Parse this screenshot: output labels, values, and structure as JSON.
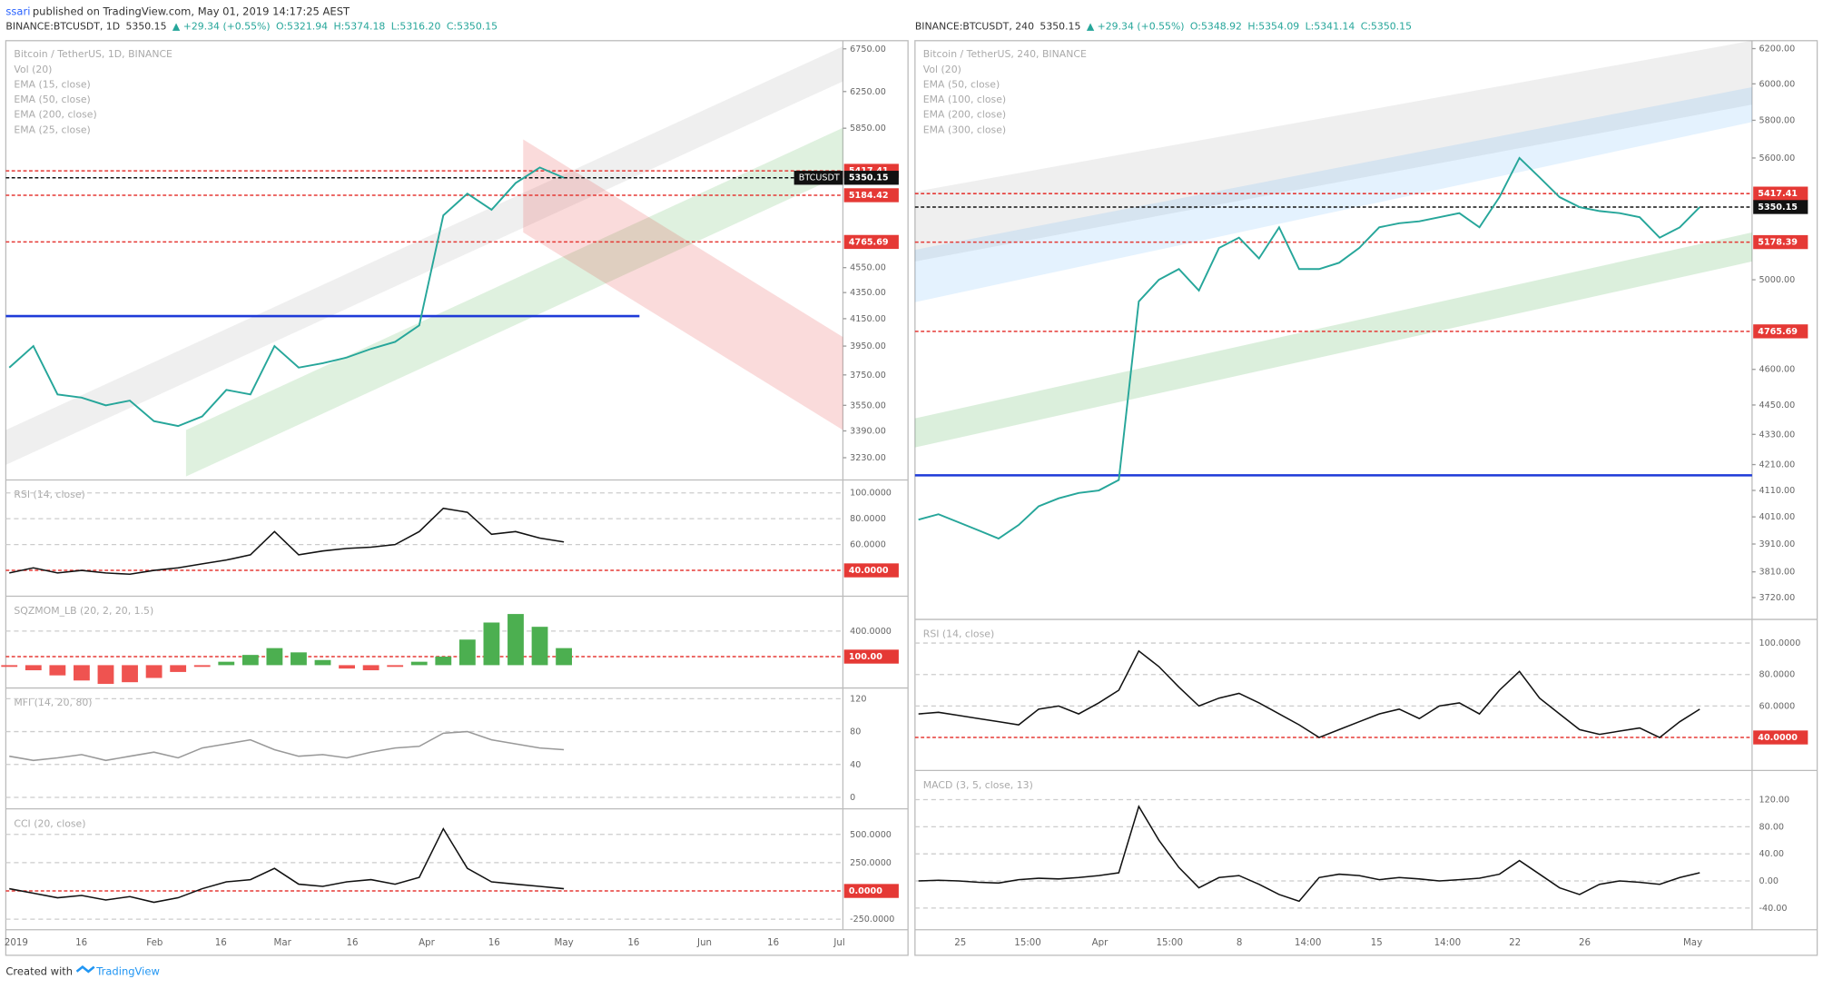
{
  "header": {
    "author": "ssari",
    "published": "published on TradingView.com, May 01, 2019 14:17:25 AEST"
  },
  "footer": {
    "created": "Created with",
    "brand": "TradingView"
  },
  "charts": [
    {
      "quote": {
        "symbol": "BINANCE:BTCUSDT, 1D",
        "last": 5350.15,
        "change": "▲ +29.34 (+0.55%)",
        "open": "O:5321.94",
        "high": "H:5374.18",
        "low": "L:5316.20",
        "close": "C:5350.15"
      },
      "legend": [
        "Bitcoin / TetherUS, 1D, BINANCE",
        "Vol (20)",
        "EMA (15, close)",
        "EMA (50, close)",
        "EMA (200, close)",
        "EMA (25, close)"
      ],
      "price": {
        "scale": "log",
        "ylim": [
          3103,
          6850
        ],
        "yticks": [
          {
            "value": 6750,
            "label": "6750.00"
          },
          {
            "value": 6250,
            "label": "6250.00"
          },
          {
            "value": 5850,
            "label": "5850.00"
          },
          {
            "value": 4550,
            "label": "4550.00"
          },
          {
            "value": 4350,
            "label": "4350.00"
          },
          {
            "value": 4150,
            "label": "4150.00"
          },
          {
            "value": 3950,
            "label": "3950.00"
          },
          {
            "value": 3750,
            "label": "3750.00"
          },
          {
            "value": 3550,
            "label": "3550.00"
          },
          {
            "value": 3390,
            "label": "3390.00"
          },
          {
            "value": 3230,
            "label": "3230.00"
          }
        ],
        "tags": [
          {
            "value": 5417.41,
            "color": "#e53935"
          },
          {
            "value": 5184.42,
            "color": "#e53935"
          },
          {
            "value": 4765.69,
            "color": "#e53935"
          }
        ],
        "last": 5350.15,
        "symbol_tag": "BTCUSDT",
        "closes": [
          3800,
          3950,
          3620,
          3600,
          3550,
          3580,
          3450,
          3420,
          3480,
          3650,
          3620,
          3950,
          3800,
          3830,
          3870,
          3930,
          3980,
          4100,
          5000,
          5200,
          5050,
          5300,
          5450,
          5350
        ]
      },
      "panes": [
        {
          "label": "RSI (14, close)",
          "ylim": [
            20,
            110
          ],
          "yticks": [
            {
              "value": 100,
              "label": "100.0000"
            },
            {
              "value": 80,
              "label": "80.0000"
            },
            {
              "value": 60,
              "label": "60.0000"
            }
          ],
          "tags": [
            {
              "value": 40,
              "label": "40.0000",
              "color": "#e53935"
            }
          ],
          "kind": "line",
          "values": [
            38,
            42,
            38,
            40,
            38,
            37,
            40,
            42,
            45,
            48,
            52,
            70,
            52,
            55,
            57,
            58,
            60,
            70,
            88,
            85,
            68,
            70,
            65,
            62
          ]
        },
        {
          "label": "SQZMOM_LB (20, 2, 20, 1.5)",
          "ylim": [
            -268,
            809
          ],
          "yticks": [
            {
              "value": 400,
              "label": "400.0000"
            }
          ],
          "tags": [
            {
              "value": 100,
              "label": "100.00",
              "color": "#e53935"
            }
          ],
          "kind": "hist",
          "values": [
            -20,
            -60,
            -120,
            -180,
            -220,
            -200,
            -150,
            -80,
            -20,
            40,
            120,
            200,
            150,
            60,
            -40,
            -60,
            -20,
            40,
            100,
            300,
            500,
            600,
            450,
            200
          ]
        },
        {
          "label": "MFI (14, 20, 80)",
          "ylim": [
            -14,
            133
          ],
          "yticks": [
            120,
            80,
            40,
            0
          ],
          "tags": [],
          "kind": "line",
          "values": [
            50,
            45,
            48,
            52,
            45,
            50,
            55,
            48,
            60,
            65,
            70,
            58,
            50,
            52,
            48,
            55,
            60,
            62,
            78,
            80,
            70,
            65,
            60,
            58
          ]
        },
        {
          "label": "CCI (20, close)",
          "ylim": [
            -343,
            726
          ],
          "yticks": [
            {
              "value": 500,
              "label": "500.0000"
            },
            {
              "value": 250,
              "label": "250.0000"
            },
            {
              "value": -250,
              "label": "-250.0000"
            }
          ],
          "tags": [
            {
              "value": 0,
              "label": "0.0000",
              "color": "#e53935"
            }
          ],
          "kind": "line",
          "values": [
            20,
            -20,
            -60,
            -40,
            -80,
            -50,
            -100,
            -60,
            20,
            80,
            100,
            200,
            60,
            40,
            80,
            100,
            60,
            120,
            550,
            200,
            80,
            60,
            40,
            20
          ]
        }
      ],
      "xlabels": [
        "2019",
        "16",
        "Feb",
        "16",
        "Mar",
        "16",
        "Apr",
        "16",
        "May",
        "16",
        "Jun",
        "16",
        "Jul"
      ]
    },
    {
      "quote": {
        "symbol": "BINANCE:BTCUSDT, 240",
        "last": 5350.15,
        "change": "▲ +29.34 (+0.55%)",
        "open": "O:5348.92",
        "high": "H:5354.09",
        "low": "L:5341.14",
        "close": "C:5350.15"
      },
      "legend": [
        "Bitcoin / TetherUS, 240, BINANCE",
        "Vol (20)",
        "EMA (50, close)",
        "EMA (100, close)",
        "EMA (200, close)",
        "EMA (300, close)"
      ],
      "price": {
        "scale": "log",
        "ylim": [
          3645,
          6246
        ],
        "yticks": [
          {
            "value": 6200,
            "label": "6200.00"
          },
          {
            "value": 6000,
            "label": "6000.00"
          },
          {
            "value": 5800,
            "label": "5800.00"
          },
          {
            "value": 5600,
            "label": "5600.00"
          },
          {
            "value": 5000,
            "label": "5000.00"
          },
          {
            "value": 4600,
            "label": "4600.00"
          },
          {
            "value": 4450,
            "label": "4450.00"
          },
          {
            "value": 4330,
            "label": "4330.00"
          },
          {
            "value": 4210,
            "label": "4210.00"
          },
          {
            "value": 4110,
            "label": "4110.00"
          },
          {
            "value": 4010,
            "label": "4010.00"
          },
          {
            "value": 3910,
            "label": "3910.00"
          },
          {
            "value": 3810,
            "label": "3810.00"
          },
          {
            "value": 3720,
            "label": "3720.00"
          }
        ],
        "tags": [
          {
            "value": 5417.41,
            "color": "#e53935"
          },
          {
            "value": 5178.39,
            "color": "#e53935"
          },
          {
            "value": 4765.69,
            "color": "#e53935"
          }
        ],
        "last": 5350.15,
        "closes": [
          4000,
          4020,
          3990,
          3960,
          3930,
          3980,
          4050,
          4080,
          4100,
          4110,
          4150,
          4900,
          5000,
          5050,
          4950,
          5150,
          5200,
          5100,
          5250,
          5050,
          5050,
          5080,
          5150,
          5250,
          5270,
          5280,
          5300,
          5320,
          5250,
          5400,
          5600,
          5500,
          5400,
          5350,
          5330,
          5320,
          5300,
          5200,
          5250,
          5350
        ]
      },
      "panes": [
        {
          "label": "RSI (14, close)",
          "ylim": [
            19,
            115
          ],
          "yticks": [
            {
              "value": 100,
              "label": "100.0000"
            },
            {
              "value": 80,
              "label": "80.0000"
            },
            {
              "value": 60,
              "label": "60.0000"
            }
          ],
          "tags": [
            {
              "value": 40,
              "label": "40.0000",
              "color": "#e53935"
            }
          ],
          "kind": "line",
          "values": [
            55,
            56,
            54,
            52,
            50,
            48,
            58,
            60,
            55,
            62,
            70,
            95,
            85,
            72,
            60,
            65,
            68,
            62,
            55,
            48,
            40,
            45,
            50,
            55,
            58,
            52,
            60,
            62,
            55,
            70,
            82,
            65,
            55,
            45,
            42,
            44,
            46,
            40,
            50,
            58
          ]
        },
        {
          "label": "MACD (3, 5, close, 13)",
          "ylim": [
            -72,
            163
          ],
          "yticks": [
            {
              "value": 120,
              "label": "120.00"
            },
            {
              "value": 80,
              "label": "80.00"
            },
            {
              "value": 40,
              "label": "40.00"
            },
            {
              "value": 0,
              "label": "0.00"
            },
            {
              "value": -40,
              "label": "-40.00"
            }
          ],
          "tags": [],
          "kind": "line",
          "values": [
            0,
            1,
            0,
            -2,
            -3,
            2,
            4,
            3,
            5,
            8,
            12,
            110,
            60,
            20,
            -10,
            5,
            8,
            -5,
            -20,
            -30,
            5,
            10,
            8,
            2,
            5,
            3,
            0,
            2,
            4,
            10,
            30,
            10,
            -10,
            -20,
            -5,
            0,
            -2,
            -5,
            5,
            12
          ]
        }
      ],
      "xlabels": [
        "25",
        "15:00",
        "Apr",
        "15:00",
        "8",
        "14:00",
        "15",
        "14:00",
        "22",
        "26",
        "May"
      ]
    }
  ]
}
